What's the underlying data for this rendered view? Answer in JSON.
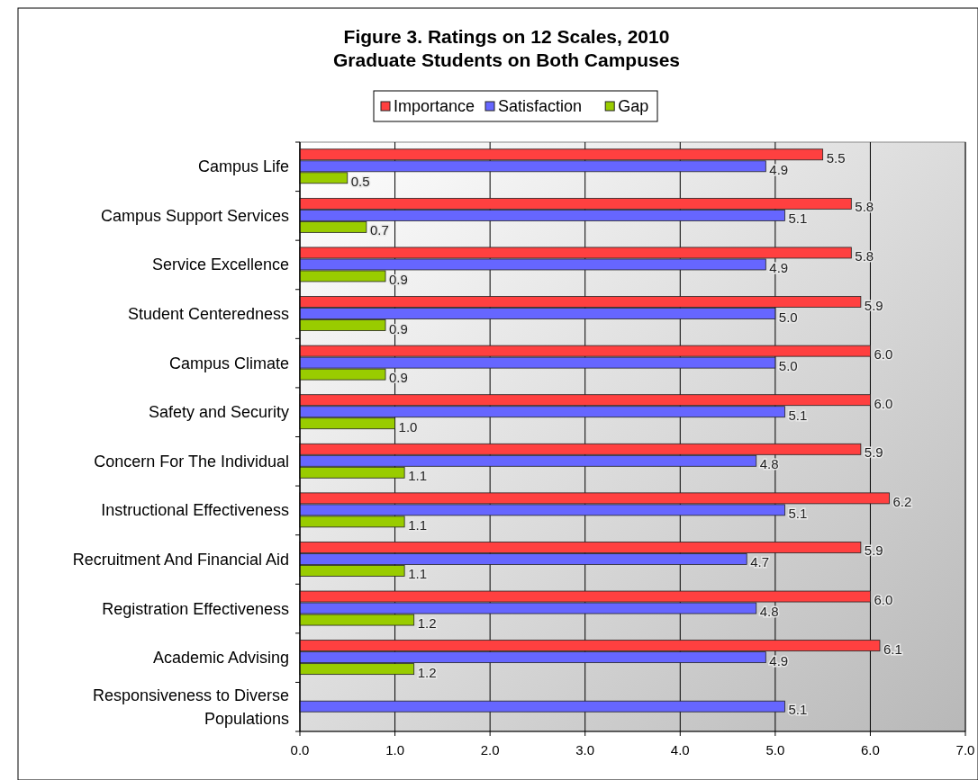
{
  "chart_data": {
    "type": "bar",
    "orientation": "horizontal",
    "title": "Figure 3. Ratings on 12 Scales, 2010",
    "subtitle": "Graduate Students on Both Campuses",
    "categories": [
      "Campus Life",
      "Campus Support Services",
      "Service Excellence",
      "Student Centeredness",
      "Campus Climate",
      "Safety and Security",
      "Concern For The Individual",
      "Instructional Effectiveness",
      "Recruitment And Financial Aid",
      "Registration Effectiveness",
      "Academic Advising",
      "Responsiveness to Diverse Populations"
    ],
    "series": [
      {
        "name": "Importance",
        "color": "#ff4040",
        "values": [
          5.5,
          5.8,
          5.8,
          5.9,
          6.0,
          6.0,
          5.9,
          6.2,
          5.9,
          6.0,
          6.1,
          null
        ],
        "value_labels": [
          "5.5",
          "5.8",
          "5.8",
          "5.9",
          "6.0",
          "6.0",
          "5.9",
          "6.2",
          "5.9",
          "6.0",
          "6.1",
          null
        ]
      },
      {
        "name": "Satisfaction",
        "color": "#6666ff",
        "values": [
          4.9,
          5.1,
          4.9,
          5.0,
          5.0,
          5.1,
          4.8,
          5.1,
          4.7,
          4.8,
          4.9,
          5.1
        ],
        "value_labels": [
          "4.9",
          "5.1",
          "4.9",
          "5.0",
          "5.0",
          "5.1",
          "4.8",
          "5.1",
          "4.7",
          "4.8",
          "4.9",
          "5.1"
        ]
      },
      {
        "name": "Gap",
        "color": "#99cc00",
        "values": [
          0.5,
          0.7,
          0.9,
          0.9,
          0.9,
          1.0,
          1.1,
          1.1,
          1.1,
          1.2,
          1.2,
          null
        ],
        "value_labels": [
          "0.5",
          "0.7",
          "0.9",
          "0.9",
          "0.9",
          "1.0",
          "1.1",
          "1.1",
          "1.1",
          "1.2",
          "1.2",
          null
        ]
      }
    ],
    "xlim": [
      0,
      7
    ],
    "xticks": [
      {
        "value": 0,
        "label": "0.0"
      },
      {
        "value": 1,
        "label": "1.0"
      },
      {
        "value": 2,
        "label": "2.0"
      },
      {
        "value": 3,
        "label": "3.0"
      },
      {
        "value": 4,
        "label": "4.0"
      },
      {
        "value": 5,
        "label": "5.0"
      },
      {
        "value": 6,
        "label": "6.0"
      },
      {
        "value": 7,
        "label": "7.0"
      }
    ],
    "grid": "x",
    "legend": "top"
  }
}
